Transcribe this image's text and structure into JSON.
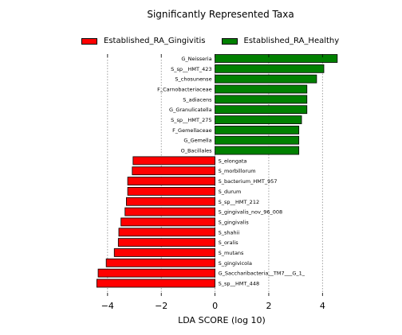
{
  "chart_data": {
    "type": "bar",
    "orientation": "horizontal",
    "title": "Significantly Represented Taxa",
    "xlabel": "LDA SCORE (log 10)",
    "ylabel": "",
    "xlim": [
      -4.5,
      5.0
    ],
    "xticks": [
      "−4",
      "−2",
      "0",
      "2",
      "4"
    ],
    "xtick_values": [
      -4,
      -2,
      0,
      2,
      4
    ],
    "grid": "vertical dotted",
    "legend": "top",
    "series": [
      {
        "name": "Established_RA_Gingivitis",
        "color": "#ff0000"
      },
      {
        "name": "Established_RA_Healthy",
        "color": "#008000"
      }
    ],
    "bars": [
      {
        "label": "G_Neisseria",
        "value": 4.55,
        "group": "Established_RA_Healthy"
      },
      {
        "label": "S_sp__HMT_423",
        "value": 4.05,
        "group": "Established_RA_Healthy"
      },
      {
        "label": "S_chosunense",
        "value": 3.78,
        "group": "Established_RA_Healthy"
      },
      {
        "label": "F_Carnobacteriaceae",
        "value": 3.42,
        "group": "Established_RA_Healthy"
      },
      {
        "label": "S_adiacens",
        "value": 3.42,
        "group": "Established_RA_Healthy"
      },
      {
        "label": "G_Granulicatella",
        "value": 3.42,
        "group": "Established_RA_Healthy"
      },
      {
        "label": "S_sp__HMT_275",
        "value": 3.22,
        "group": "Established_RA_Healthy"
      },
      {
        "label": "F_Gemellaceae",
        "value": 3.12,
        "group": "Established_RA_Healthy"
      },
      {
        "label": "G_Gemella",
        "value": 3.12,
        "group": "Established_RA_Healthy"
      },
      {
        "label": "O_Bacillales",
        "value": 3.12,
        "group": "Established_RA_Healthy"
      },
      {
        "label": "S_elongata",
        "value": -3.05,
        "group": "Established_RA_Gingivitis"
      },
      {
        "label": "S_morbillorum",
        "value": -3.08,
        "group": "Established_RA_Gingivitis"
      },
      {
        "label": "S_bacterium_HMT_957",
        "value": -3.25,
        "group": "Established_RA_Gingivitis"
      },
      {
        "label": "S_durum",
        "value": -3.25,
        "group": "Established_RA_Gingivitis"
      },
      {
        "label": "S_sp__HMT_212",
        "value": -3.3,
        "group": "Established_RA_Gingivitis"
      },
      {
        "label": "S_gingivalis_nov_96_008",
        "value": -3.35,
        "group": "Established_RA_Gingivitis"
      },
      {
        "label": "S_gingivalis",
        "value": -3.5,
        "group": "Established_RA_Gingivitis"
      },
      {
        "label": "S_shahii",
        "value": -3.58,
        "group": "Established_RA_Gingivitis"
      },
      {
        "label": "S_oralis",
        "value": -3.6,
        "group": "Established_RA_Gingivitis"
      },
      {
        "label": "S_mutans",
        "value": -3.75,
        "group": "Established_RA_Gingivitis"
      },
      {
        "label": "S_gingivicola",
        "value": -4.05,
        "group": "Established_RA_Gingivitis"
      },
      {
        "label": "G_Saccharibacteria__TM7___G_1_",
        "value": -4.35,
        "group": "Established_RA_Gingivitis"
      },
      {
        "label": "S_sp__HMT_448",
        "value": -4.4,
        "group": "Established_RA_Gingivitis"
      }
    ]
  }
}
